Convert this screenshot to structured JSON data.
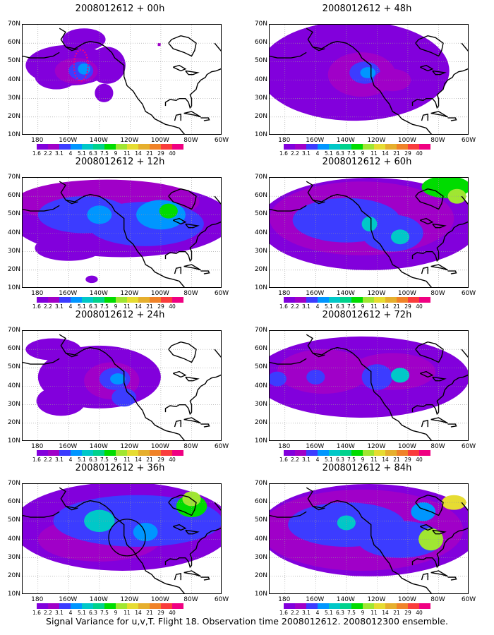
{
  "panels": [
    {
      "title": "2008012612 + 00h",
      "level": 0,
      "annotation": "dashed-oval"
    },
    {
      "title": "2008012612 + 48h",
      "level": 4
    },
    {
      "title": "2008012612 + 12h",
      "level": 1
    },
    {
      "title": "2008012612 + 60h",
      "level": 5
    },
    {
      "title": "2008012612 + 24h",
      "level": 2
    },
    {
      "title": "2008012612 + 72h",
      "level": 6
    },
    {
      "title": "2008012612 + 36h",
      "level": 3,
      "annotation": "circle"
    },
    {
      "title": "2008012612 + 84h",
      "level": 7
    }
  ],
  "axes": {
    "y_labels": [
      "70N",
      "60N",
      "50N",
      "40N",
      "30N",
      "20N",
      "10N"
    ],
    "x_labels": [
      "180",
      "160W",
      "140W",
      "120W",
      "100W",
      "80W",
      "60W"
    ]
  },
  "colorbar": {
    "labels": [
      "1.6",
      "2.2",
      "3.1",
      "4",
      "5.1",
      "6.3",
      "7.5",
      "9",
      "11",
      "14",
      "21",
      "29",
      "40"
    ],
    "colors": [
      "#8200dc",
      "#a000c8",
      "#3c3cff",
      "#0096ff",
      "#00c8c8",
      "#00d28c",
      "#00dc00",
      "#a0e632",
      "#e6dc32",
      "#e6af2d",
      "#f08228",
      "#fa3c3c",
      "#f00082"
    ]
  },
  "caption": "Signal Variance for u,v,T. Flight 18. Observation time 2008012612. 2008012300 ensemble."
}
